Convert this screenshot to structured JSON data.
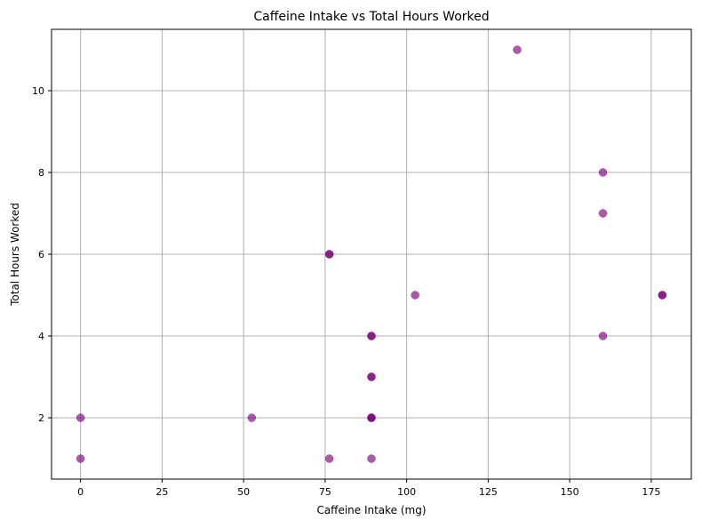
{
  "chart_data": {
    "type": "scatter",
    "title": "Caffeine Intake vs Total Hours Worked",
    "xlabel": "Caffeine Intake (mg)",
    "ylabel": "Total Hours Worked",
    "xlim": [
      -8.9,
      187.3
    ],
    "ylim": [
      0.5,
      11.5
    ],
    "xticks": [
      0,
      25,
      50,
      75,
      100,
      125,
      150,
      175
    ],
    "yticks": [
      2,
      4,
      6,
      8,
      10
    ],
    "grid": true,
    "point_color": "#800080",
    "point_opacity": 0.65,
    "points": [
      {
        "x": 0,
        "y": 2
      },
      {
        "x": 0,
        "y": 1
      },
      {
        "x": 52.5,
        "y": 2
      },
      {
        "x": 76.3,
        "y": 6
      },
      {
        "x": 76.3,
        "y": 6
      },
      {
        "x": 76.3,
        "y": 1
      },
      {
        "x": 89.2,
        "y": 4
      },
      {
        "x": 89.2,
        "y": 4
      },
      {
        "x": 89.2,
        "y": 3
      },
      {
        "x": 89.2,
        "y": 3
      },
      {
        "x": 89.2,
        "y": 2
      },
      {
        "x": 89.2,
        "y": 2
      },
      {
        "x": 89.2,
        "y": 2
      },
      {
        "x": 89.2,
        "y": 1
      },
      {
        "x": 102.6,
        "y": 5
      },
      {
        "x": 133.9,
        "y": 11
      },
      {
        "x": 160.2,
        "y": 8
      },
      {
        "x": 160.2,
        "y": 7
      },
      {
        "x": 160.2,
        "y": 4
      },
      {
        "x": 178.4,
        "y": 5
      },
      {
        "x": 178.4,
        "y": 5
      }
    ]
  }
}
